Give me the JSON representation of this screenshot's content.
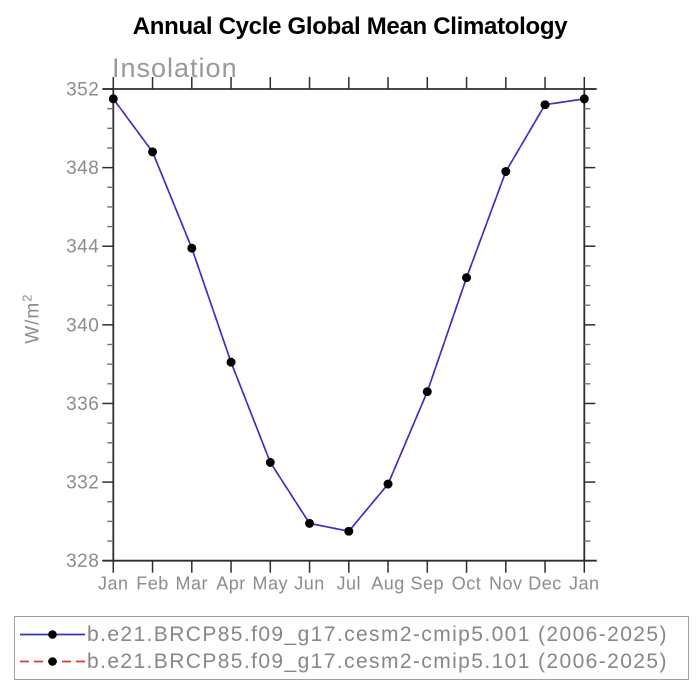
{
  "title": "Annual Cycle Global Mean Climatology",
  "chart_data": {
    "type": "line",
    "title": "Annual Cycle Global Mean Climatology",
    "subtitle": "Insolation",
    "ylabel_base": "W/m",
    "ylabel_exponent": "2",
    "xlabel": "",
    "categories": [
      "Jan",
      "Feb",
      "Mar",
      "Apr",
      "May",
      "Jun",
      "Jul",
      "Aug",
      "Sep",
      "Oct",
      "Nov",
      "Dec",
      "Jan"
    ],
    "ylim": [
      328,
      352
    ],
    "ytick_major": [
      328,
      332,
      336,
      340,
      344,
      348,
      352
    ],
    "ytick_minor_step": 1,
    "grid": false,
    "legend_position": "bottom",
    "series": [
      {
        "name": "b.e21.BRCP85.f09_g17.cesm2-cmip5.001 (2006-2025)",
        "line_color": "#3333cc",
        "line_style": "solid",
        "marker": "circle",
        "marker_color": "#000000",
        "values": [
          351.5,
          348.8,
          343.9,
          338.1,
          333.0,
          329.9,
          329.5,
          331.9,
          336.6,
          342.4,
          347.8,
          351.2,
          351.5
        ]
      },
      {
        "name": "b.e21.BRCP85.f09_g17.cesm2-cmip5.101 (2006-2025)",
        "line_color": "#e53535",
        "line_style": "dashed",
        "marker": "circle",
        "marker_color": "#000000",
        "values": [
          351.5,
          348.8,
          343.9,
          338.1,
          333.0,
          329.9,
          329.5,
          331.9,
          336.6,
          342.4,
          347.8,
          351.2,
          351.5
        ]
      }
    ]
  },
  "colors": {
    "axis": "#2e2e2e",
    "minor_tick": "#707070",
    "tick_label": "#8c8c8c",
    "subtitle": "#999999",
    "legend_border": "#a0a0a0",
    "legend_text": "#878787"
  }
}
